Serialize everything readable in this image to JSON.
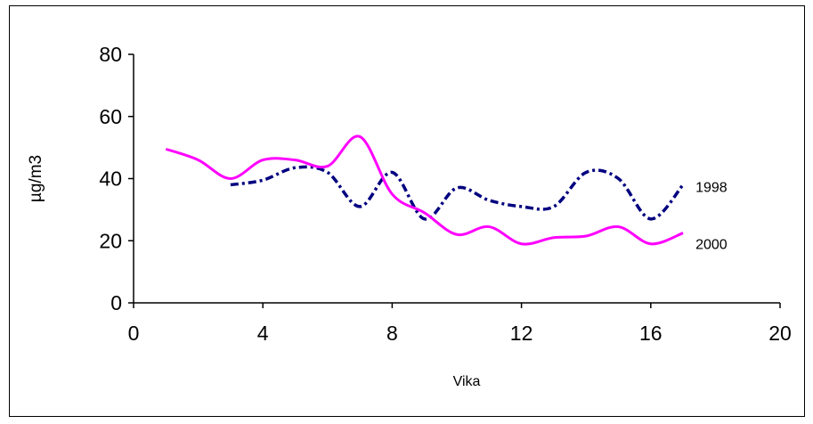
{
  "chart_data": {
    "type": "line",
    "title": "",
    "xlabel": "Vika",
    "ylabel": "µg/m3",
    "xlim": [
      0,
      20
    ],
    "ylim": [
      0,
      80
    ],
    "xticks": [
      0,
      4,
      8,
      12,
      16,
      20
    ],
    "yticks": [
      0,
      20,
      40,
      60,
      80
    ],
    "grid": false,
    "legend": "none",
    "series": [
      {
        "name": "1998",
        "color": "#000080",
        "style": "dash-dot",
        "x": [
          3,
          4,
          5,
          6,
          7,
          8,
          9,
          10,
          11,
          12,
          13,
          14,
          15,
          16,
          17
        ],
        "y": [
          38,
          39.5,
          43.5,
          42,
          31,
          42,
          27,
          37,
          33,
          31,
          31,
          42,
          40,
          27,
          38
        ]
      },
      {
        "name": "2000",
        "color": "#ff00ff",
        "style": "solid",
        "x": [
          1,
          2,
          3,
          4,
          5,
          6,
          7,
          8,
          9,
          10,
          11,
          12,
          13,
          14,
          15,
          16,
          17
        ],
        "y": [
          49.5,
          46,
          40,
          46,
          46,
          44,
          53.5,
          35,
          29,
          22,
          24.5,
          19,
          21,
          21.5,
          24.5,
          19,
          22.5
        ]
      }
    ]
  }
}
